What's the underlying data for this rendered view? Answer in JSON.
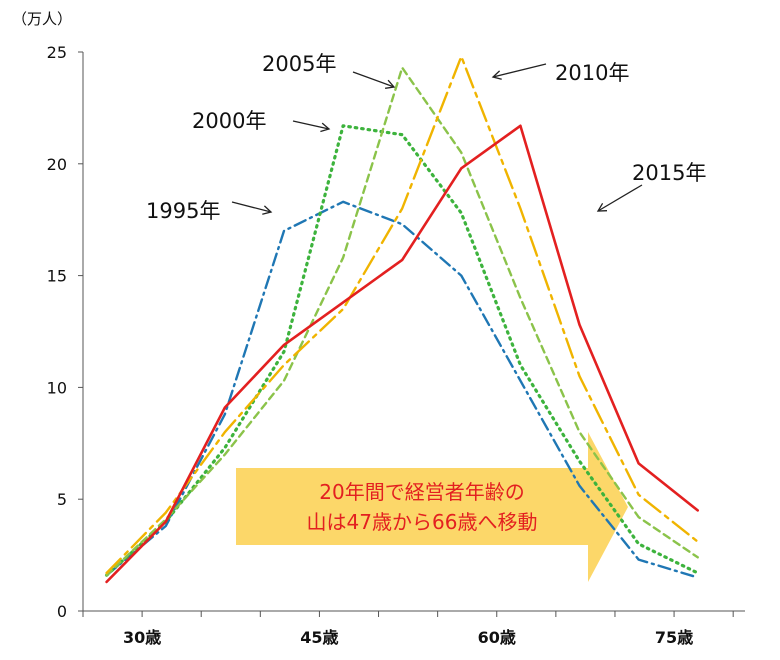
{
  "chart_data": {
    "type": "line",
    "ylabel": "（万人）",
    "ylim": [
      0,
      25
    ],
    "yticks": [
      0,
      5,
      10,
      15,
      20,
      25
    ],
    "xlim": [
      25,
      81
    ],
    "xticks": [
      {
        "value": 30,
        "label": "30歳"
      },
      {
        "value": 45,
        "label": "45歳"
      },
      {
        "value": 60,
        "label": "60歳"
      },
      {
        "value": 75,
        "label": "75歳"
      }
    ],
    "grid": false,
    "series": [
      {
        "name": "1995年",
        "color": "#1f77b4",
        "dash": "dash-dot",
        "x": [
          27,
          32,
          37,
          42,
          47,
          52,
          57,
          62,
          67,
          72,
          77
        ],
        "y": [
          1.6,
          3.8,
          8.8,
          17.0,
          18.3,
          17.3,
          15.0,
          10.3,
          5.6,
          2.3,
          1.5
        ]
      },
      {
        "name": "2000年",
        "color": "#3db33d",
        "dash": "dotted",
        "x": [
          27,
          32,
          37,
          42,
          47,
          52,
          57,
          62,
          67,
          72,
          77
        ],
        "y": [
          1.6,
          4.0,
          7.3,
          11.6,
          21.7,
          21.3,
          17.8,
          11.0,
          6.7,
          3.0,
          1.7
        ]
      },
      {
        "name": "2005年",
        "color": "#8bc34a",
        "dash": "short-dash",
        "x": [
          27,
          32,
          37,
          42,
          47,
          52,
          57,
          62,
          67,
          72,
          77
        ],
        "y": [
          1.6,
          4.1,
          7.0,
          10.3,
          15.8,
          24.3,
          20.5,
          14.0,
          8.0,
          4.2,
          2.4
        ]
      },
      {
        "name": "2010年",
        "color": "#f0b400",
        "dash": "long-dash-dot",
        "x": [
          27,
          32,
          37,
          42,
          47,
          52,
          57,
          62,
          67,
          72,
          77
        ],
        "y": [
          1.7,
          4.4,
          8.0,
          11.0,
          13.5,
          18.0,
          24.8,
          18.0,
          10.5,
          5.2,
          3.1
        ]
      },
      {
        "name": "2015年",
        "color": "#e32020",
        "dash": "solid",
        "x": [
          27,
          32,
          37,
          42,
          47,
          52,
          57,
          62,
          67,
          72,
          77
        ],
        "y": [
          1.3,
          4.0,
          9.1,
          11.9,
          13.8,
          15.7,
          19.8,
          21.7,
          12.8,
          6.6,
          4.5
        ]
      }
    ],
    "annotations": [
      {
        "text": "1995年",
        "series": "1995年"
      },
      {
        "text": "2000年",
        "series": "2000年"
      },
      {
        "text": "2005年",
        "series": "2005年"
      },
      {
        "text": "2010年",
        "series": "2010年"
      },
      {
        "text": "2015年",
        "series": "2015年"
      }
    ],
    "note": {
      "lines": [
        "20年間で経営者年齢の",
        "山は47歳から66歳へ移動"
      ],
      "arrow_color": "#fbd04f",
      "text_color": "#e32020"
    }
  }
}
